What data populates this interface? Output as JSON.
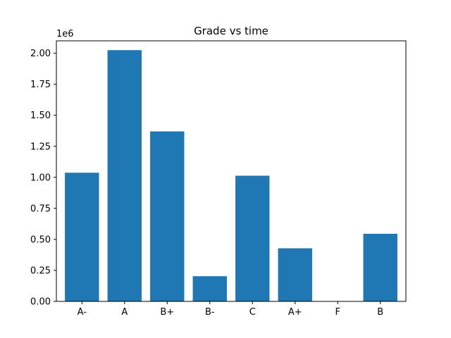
{
  "chart_data": {
    "type": "bar",
    "title": "Grade vs time",
    "xlabel": "",
    "ylabel": "",
    "y_offset_label": "1e6",
    "categories": [
      "A-",
      "A",
      "B+",
      "B-",
      "C",
      "A+",
      "F",
      "B"
    ],
    "values": [
      1037000,
      2025000,
      1370000,
      203000,
      1013000,
      428000,
      0,
      545000
    ],
    "ylim": [
      0,
      2100000.0
    ],
    "yticks": [
      {
        "value": 0,
        "label": "0.00"
      },
      {
        "value": 250000,
        "label": "0.25"
      },
      {
        "value": 500000,
        "label": "0.50"
      },
      {
        "value": 750000,
        "label": "0.75"
      },
      {
        "value": 1000000,
        "label": "1.00"
      },
      {
        "value": 1250000,
        "label": "1.25"
      },
      {
        "value": 1500000,
        "label": "1.50"
      },
      {
        "value": 1750000,
        "label": "1.75"
      },
      {
        "value": 2000000,
        "label": "2.00"
      }
    ],
    "bar_color": "#1f77b4",
    "grid": false,
    "legend": "none"
  }
}
